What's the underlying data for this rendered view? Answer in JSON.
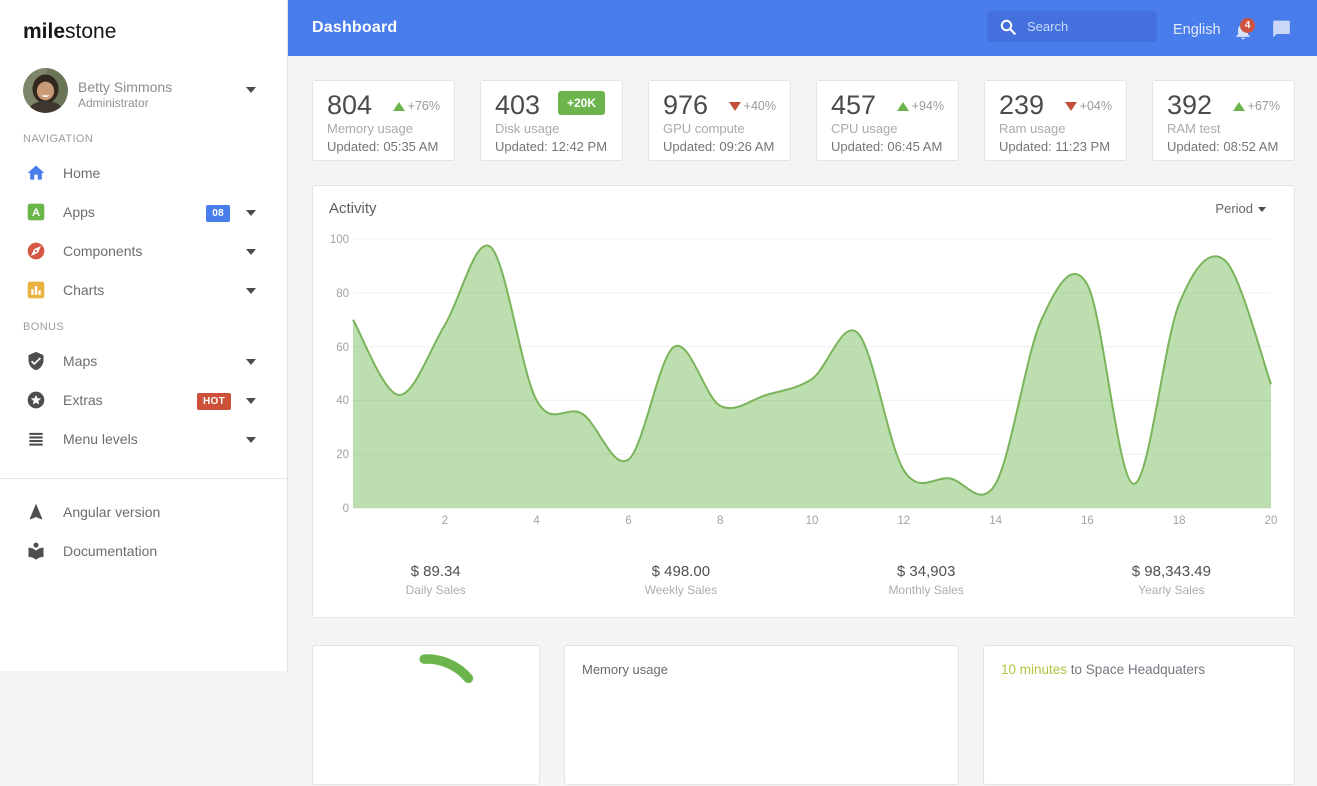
{
  "brand": {
    "bold": "mile",
    "light": "stone"
  },
  "user": {
    "name": "Betty Simmons",
    "role": "Administrator"
  },
  "sidebar": {
    "sections": [
      {
        "label": "NAVIGATION",
        "items": [
          {
            "label": "Home",
            "icon": "home-icon",
            "caret": false
          },
          {
            "label": "Apps",
            "icon": "apps-icon",
            "badge": "08",
            "badge_style": "blue",
            "caret": true
          },
          {
            "label": "Components",
            "icon": "components-icon",
            "caret": true
          },
          {
            "label": "Charts",
            "icon": "charts-icon",
            "caret": true
          }
        ]
      },
      {
        "label": "BONUS",
        "items": [
          {
            "label": "Maps",
            "icon": "maps-icon",
            "caret": true
          },
          {
            "label": "Extras",
            "icon": "extras-icon",
            "badge": "HOT",
            "badge_style": "red",
            "caret": true
          },
          {
            "label": "Menu levels",
            "icon": "menu-levels-icon",
            "caret": true
          }
        ]
      }
    ],
    "footer_items": [
      {
        "label": "Angular version",
        "icon": "angular-version-icon"
      },
      {
        "label": "Documentation",
        "icon": "documentation-icon"
      }
    ]
  },
  "topbar": {
    "title": "Dashboard",
    "search_placeholder": "Search",
    "language": "English",
    "notification_count": "4"
  },
  "stats": [
    {
      "value": "804",
      "label": "Memory usage",
      "updated": "Updated: 05:35 AM",
      "trend": "up",
      "pct": "+76%"
    },
    {
      "value": "403",
      "label": "Disk usage",
      "updated": "Updated: 12:42 PM",
      "badge": "+20K"
    },
    {
      "value": "976",
      "label": "GPU compute",
      "updated": "Updated: 09:26 AM",
      "trend": "down",
      "pct": "+40%"
    },
    {
      "value": "457",
      "label": "CPU usage",
      "updated": "Updated: 06:45 AM",
      "trend": "up",
      "pct": "+94%"
    },
    {
      "value": "239",
      "label": "Ram usage",
      "updated": "Updated: 11:23 PM",
      "trend": "down",
      "pct": "+04%"
    },
    {
      "value": "392",
      "label": "RAM test",
      "updated": "Updated: 08:52 AM",
      "trend": "up",
      "pct": "+67%"
    }
  ],
  "activity": {
    "title": "Activity",
    "period_label": "Period",
    "chart_data": {
      "type": "area",
      "x": [
        0,
        1,
        2,
        3,
        4,
        5,
        6,
        7,
        8,
        9,
        10,
        11,
        12,
        13,
        14,
        15,
        16,
        17,
        18,
        19,
        20
      ],
      "values": [
        70,
        42,
        68,
        97,
        40,
        35,
        18,
        60,
        38,
        42,
        48,
        65,
        14,
        11,
        9,
        70,
        83,
        9,
        76,
        92,
        46
      ],
      "title": "Activity",
      "xlabel": "",
      "ylabel": "",
      "x_ticks": [
        2,
        4,
        6,
        8,
        10,
        12,
        14,
        16,
        18,
        20
      ],
      "y_ticks": [
        0,
        20,
        40,
        60,
        80,
        100
      ],
      "xlim": [
        0,
        20
      ],
      "ylim": [
        0,
        100
      ],
      "grid": "horizontal",
      "legend": false,
      "fill_color": "rgba(108,181,77,0.45)",
      "line_color": "#7ab45b"
    },
    "sales": [
      {
        "value": "$ 89.34",
        "label": "Daily Sales"
      },
      {
        "value": "$ 498.00",
        "label": "Weekly Sales"
      },
      {
        "value": "$ 34,903",
        "label": "Monthly Sales"
      },
      {
        "value": "$ 98,343.49",
        "label": "Yearly Sales"
      }
    ]
  },
  "widgets": {
    "gauge": {
      "color": "#6cb54d"
    },
    "memory": {
      "title": "Memory usage"
    },
    "timeline": {
      "highlight": "10 minutes",
      "rest": " to Space Headquaters"
    }
  }
}
